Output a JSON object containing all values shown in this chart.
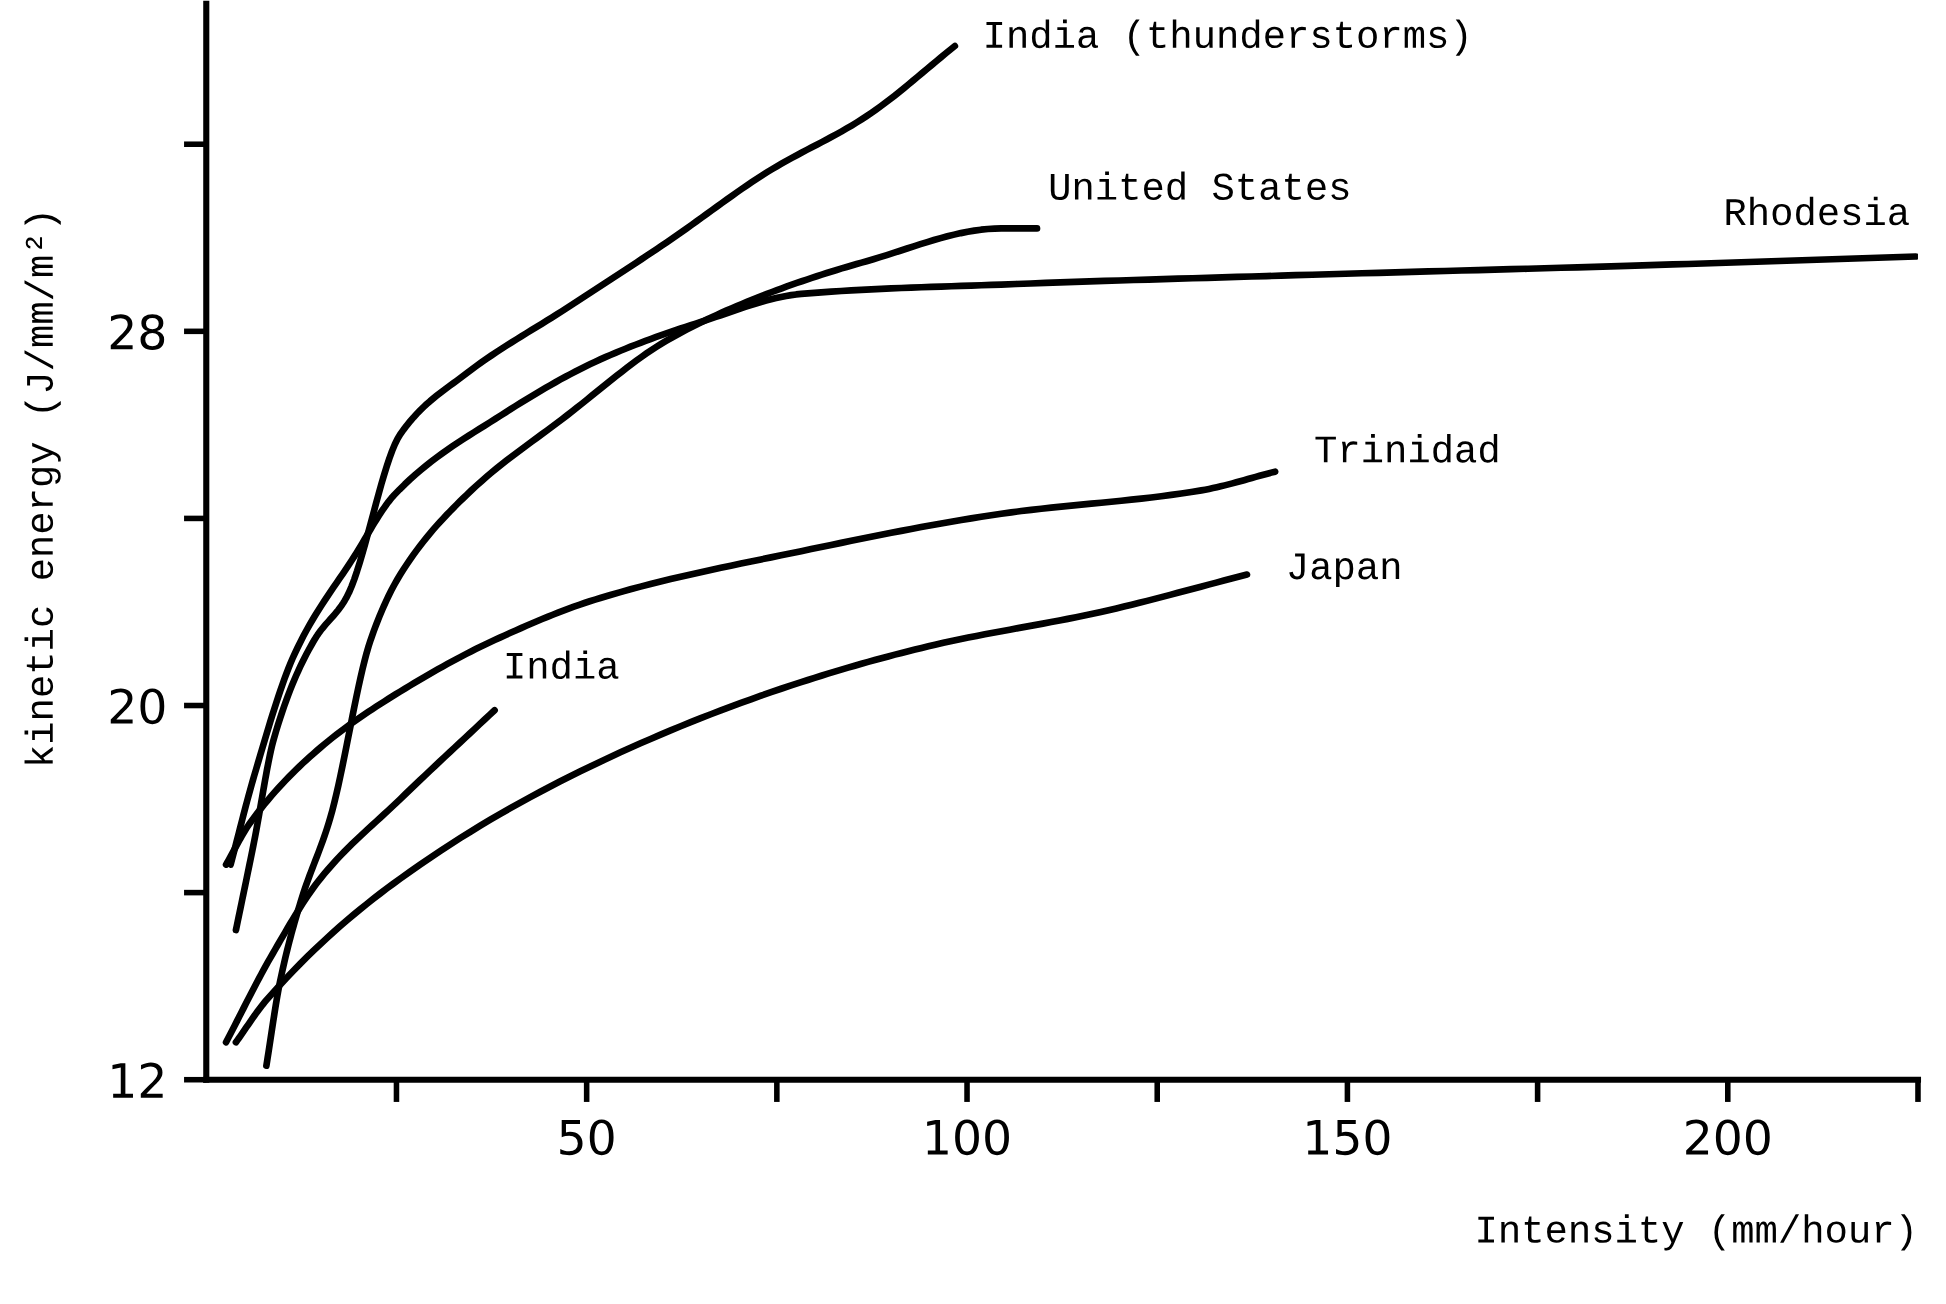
{
  "chart_data": {
    "type": "line",
    "xlabel": "Intensity (mm/hour)",
    "ylabel": "kinetic energy (J/mm/m²)",
    "xlim": [
      0,
      225
    ],
    "ylim": [
      12,
      35
    ],
    "xticks": [
      {
        "value": 25,
        "label": null
      },
      50,
      {
        "value": 75,
        "label": null
      },
      100,
      {
        "value": 125,
        "label": null
      },
      150,
      {
        "value": 175,
        "label": null
      },
      200,
      {
        "value": 225,
        "label": null
      }
    ],
    "yticks": [
      12,
      {
        "value": 16,
        "label": null
      },
      20,
      {
        "value": 24,
        "label": null
      },
      28,
      {
        "value": 32,
        "label": null
      }
    ],
    "grid": false,
    "legend": false,
    "marker": "none",
    "line_style": "solid",
    "series": [
      {
        "name": "India (thunderstorms)",
        "color": "#000000",
        "x": [
          3.9,
          6.3,
          8.9,
          14.2,
          18.4,
          25.5,
          34.2,
          47.4,
          60.5,
          73.7,
          86.8,
          98.4
        ],
        "values": [
          15.2,
          17.1,
          19.3,
          21.4,
          22.3,
          25.8,
          27.1,
          28.5,
          29.9,
          31.4,
          32.6,
          34.1
        ]
      },
      {
        "name": "United States",
        "color": "#000000",
        "x": [
          7.9,
          9.7,
          12.4,
          16.3,
          21.6,
          25.5,
          34.2,
          47.4,
          60.5,
          73.7,
          86.8,
          104.5,
          109.2
        ],
        "values": [
          12.3,
          14.1,
          15.8,
          17.6,
          21.4,
          22.8,
          24.5,
          26.2,
          27.8,
          28.8,
          29.5,
          30.2,
          30.2
        ]
      },
      {
        "name": "Rhodesia",
        "color": "#000000",
        "x": [
          3.2,
          6.3,
          11.6,
          19.5,
          24.7,
          38.7,
          51.8,
          65,
          78.2,
          104.5,
          143.2,
          186.8,
          224.7
        ],
        "values": [
          16.6,
          18.5,
          21.1,
          23.2,
          24.5,
          26.2,
          27.4,
          28.2,
          28.8,
          29.0,
          29.2,
          29.4,
          29.6
        ]
      },
      {
        "name": "Trinidad",
        "color": "#000000",
        "x": [
          2.6,
          5.8,
          15,
          25.5,
          37.9,
          51.8,
          78.2,
          104.5,
          130.8,
          140.5
        ],
        "values": [
          16.6,
          17.5,
          19.1,
          20.3,
          21.4,
          22.3,
          23.3,
          24.1,
          24.6,
          25.0
        ]
      },
      {
        "name": "Japan",
        "color": "#000000",
        "x": [
          3.9,
          7.9,
          25.5,
          51.8,
          78.2,
          95.8,
          117.6,
          136.8
        ],
        "values": [
          12.8,
          13.7,
          16.3,
          18.8,
          20.5,
          21.3,
          22.0,
          22.8
        ]
      },
      {
        "name": "India",
        "color": "#000000",
        "x": [
          2.6,
          8.4,
          15,
          25.5,
          37.9
        ],
        "values": [
          12.8,
          14.6,
          16.3,
          18.0,
          19.9
        ]
      }
    ]
  }
}
